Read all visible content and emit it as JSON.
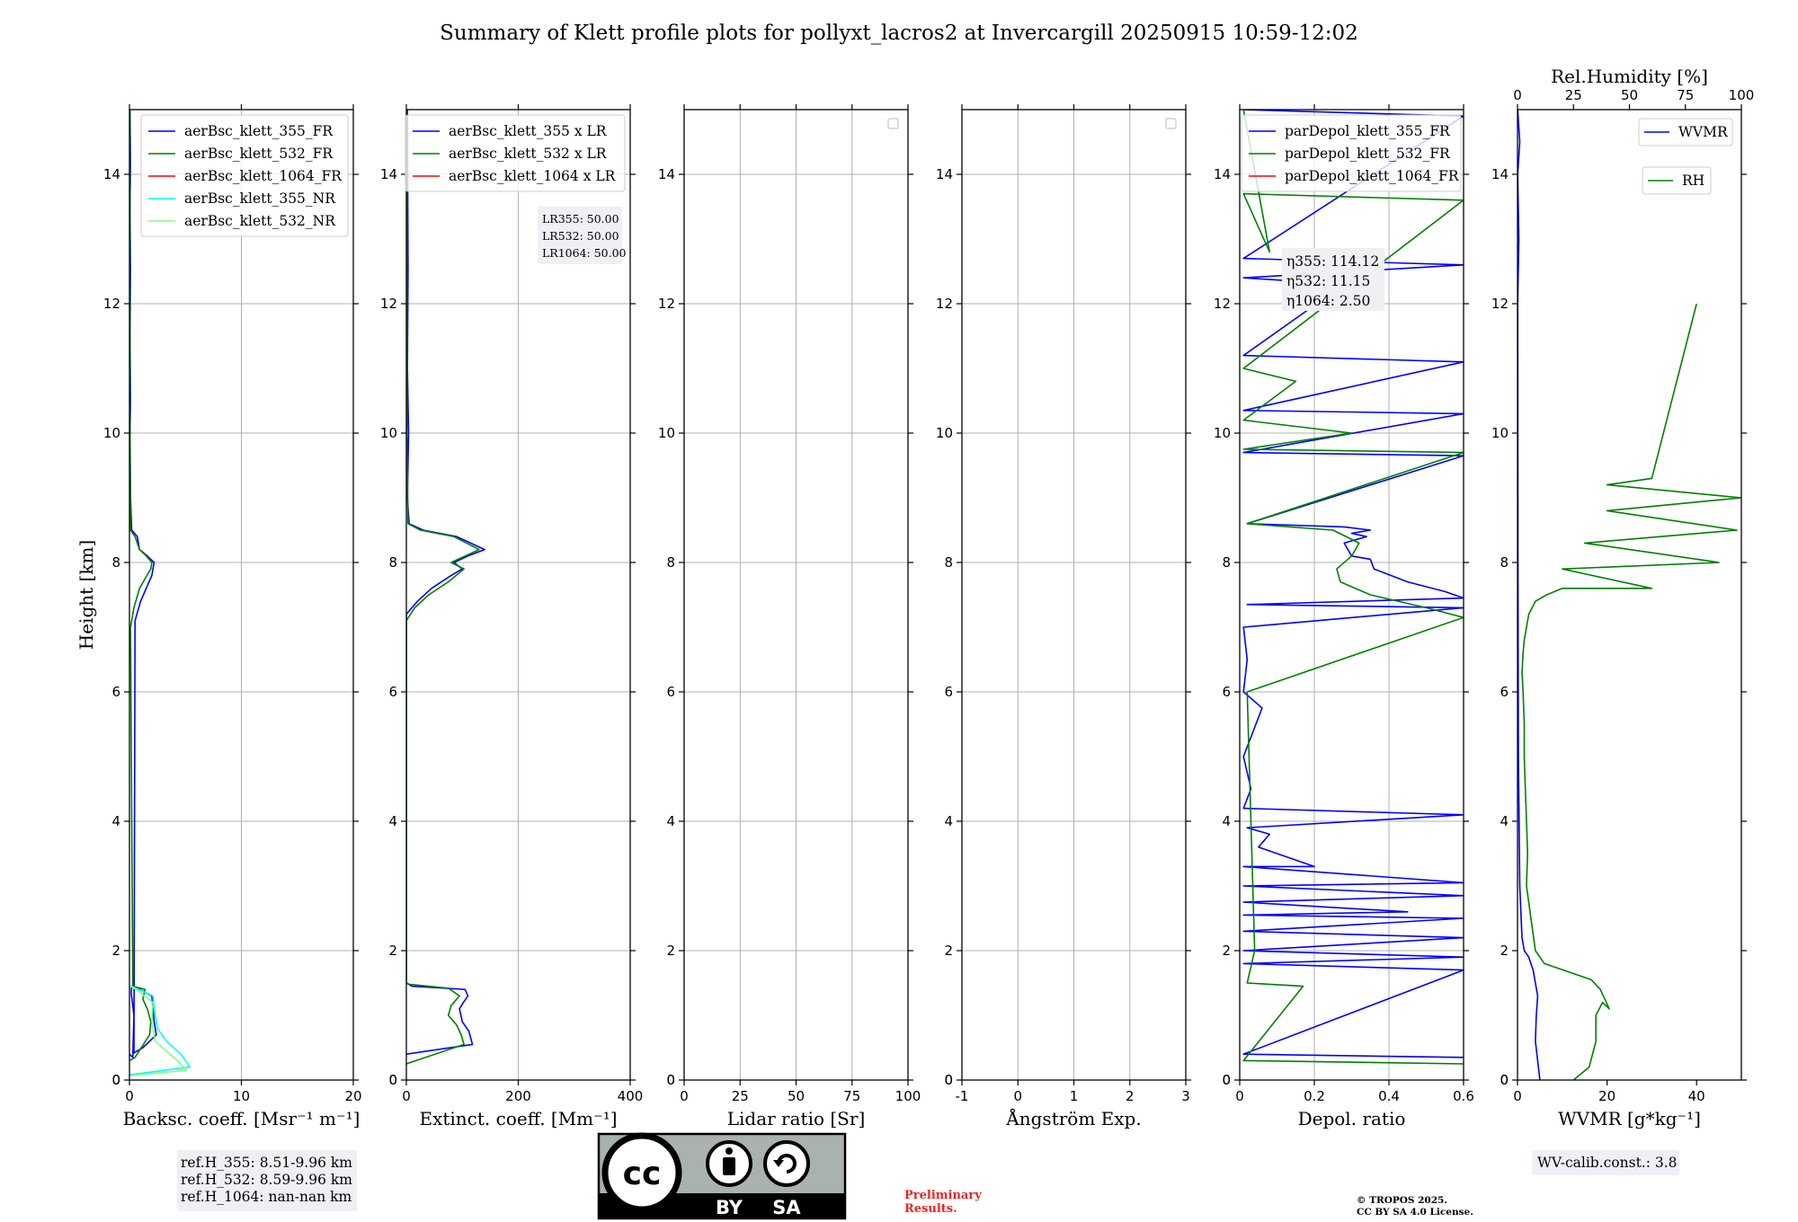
{
  "title": "Summary of Klett profile plots for pollyxt_lacros2 at Invercargill 20250915 10:59-12:02",
  "y_axis_label": "Height [km]",
  "colors": {
    "c355": "#0000ff",
    "c532": "#008000",
    "c1064": "#ff0000",
    "c355nr": "#00ffff",
    "c532nr": "#80ff80"
  },
  "chart_data": [
    {
      "id": "backscatter",
      "type": "line",
      "xlabel": "Backsc. coeff. [Msr⁻¹ m⁻¹]",
      "xlim": [
        0,
        20
      ],
      "xticks": [
        0,
        10,
        20
      ],
      "ylim": [
        0,
        15
      ],
      "yticks": [
        0,
        2,
        4,
        6,
        8,
        10,
        12,
        14
      ],
      "grid": true,
      "legend": "top-right",
      "series": [
        {
          "name": "aerBsc_klett_355_FR",
          "color": "#0000ff",
          "x": [
            0,
            0.3,
            0.4,
            0.15,
            0.2,
            0.9,
            2.0,
            2.2,
            2.4,
            1.2,
            0.4,
            0.5,
            1.0,
            2.0,
            2.2,
            1.6,
            0.9,
            0.7,
            0.2,
            0.1,
            0.05,
            0.1,
            0.05,
            0.1,
            0.05,
            0.1,
            0.05
          ],
          "y": [
            0.4,
            0.35,
            1.0,
            1.35,
            1.45,
            1.4,
            1.3,
            0.9,
            0.7,
            0.5,
            0.42,
            7.1,
            7.4,
            7.8,
            8.0,
            8.1,
            8.2,
            8.4,
            8.5,
            9.0,
            10.0,
            10.5,
            11.5,
            12.5,
            13.5,
            14.2,
            15.0
          ]
        },
        {
          "name": "aerBsc_klett_532_FR",
          "color": "#008000",
          "x": [
            0,
            0.5,
            1.8,
            1.9,
            1.6,
            1.2,
            1.4,
            0.3,
            0.1,
            0.4,
            0.9,
            1.9,
            2.0,
            1.5,
            0.9,
            0.5,
            0.1,
            0.05,
            0.05,
            0.05
          ],
          "y": [
            0.3,
            0.35,
            0.7,
            0.9,
            1.1,
            1.25,
            1.4,
            1.45,
            7.0,
            7.3,
            7.6,
            7.9,
            8.0,
            8.1,
            8.2,
            8.4,
            8.5,
            10.0,
            12.0,
            15.0
          ]
        },
        {
          "name": "aerBsc_klett_1064_FR",
          "color": "#ff0000",
          "x": [],
          "y": []
        },
        {
          "name": "aerBsc_klett_355_NR",
          "color": "#00ffff",
          "x": [
            0,
            5.4,
            4.6,
            3.3,
            2.5,
            2.3,
            2.1,
            0.8,
            0.2
          ],
          "y": [
            0.08,
            0.2,
            0.4,
            0.6,
            0.8,
            1.0,
            1.3,
            1.4,
            1.45
          ]
        },
        {
          "name": "aerBsc_klett_532_NR",
          "color": "#80ff80",
          "x": [
            0,
            5.1,
            4.3,
            2.3,
            2.0,
            2.1,
            0.6,
            0.1
          ],
          "y": [
            0.07,
            0.15,
            0.3,
            0.6,
            0.9,
            1.2,
            1.4,
            1.45
          ]
        }
      ],
      "annotation_lines": [
        "ref.H_355: 8.51-9.96 km",
        "ref.H_532: 8.59-9.96 km",
        "ref.H_1064: nan-nan km"
      ]
    },
    {
      "id": "extinction",
      "type": "line",
      "xlabel": "Extinct. coeff. [Mm⁻¹]",
      "xlim": [
        0,
        400
      ],
      "xticks": [
        0,
        200,
        400
      ],
      "ylim": [
        0,
        15
      ],
      "yticks": [
        0,
        2,
        4,
        6,
        8,
        10,
        12,
        14
      ],
      "grid": true,
      "legend": "top-right",
      "series": [
        {
          "name": "aerBsc_klett_355 x LR",
          "color": "#0000ff",
          "x": [
            0,
            118,
            112,
            100,
            95,
            102,
            110,
            105,
            10,
            0,
            0,
            20,
            45,
            80,
            100,
            85,
            110,
            140,
            90,
            30,
            5,
            2,
            4,
            2,
            3,
            2
          ],
          "y": [
            0.4,
            0.55,
            0.75,
            0.9,
            1.1,
            1.2,
            1.3,
            1.4,
            1.45,
            1.5,
            7.2,
            7.4,
            7.6,
            7.8,
            7.9,
            8.0,
            8.1,
            8.2,
            8.4,
            8.5,
            8.6,
            9.0,
            10.0,
            11.0,
            12.5,
            15.0
          ]
        },
        {
          "name": "aerBsc_klett_532 x LR",
          "color": "#008000",
          "x": [
            0,
            103,
            98,
            90,
            75,
            80,
            95,
            75,
            5,
            0,
            0,
            15,
            40,
            75,
            103,
            80,
            105,
            130,
            85,
            25,
            3,
            1,
            1
          ],
          "y": [
            0.25,
            0.55,
            0.7,
            0.85,
            1.0,
            1.15,
            1.3,
            1.42,
            1.48,
            1.5,
            7.1,
            7.3,
            7.5,
            7.7,
            7.9,
            8.0,
            8.1,
            8.2,
            8.4,
            8.5,
            8.6,
            10.0,
            15.0
          ]
        },
        {
          "name": "aerBsc_klett_1064 x LR",
          "color": "#ff0000",
          "x": [],
          "y": []
        }
      ],
      "annotation_lines": [
        "LR355: 50.00",
        "LR532: 50.00",
        "LR1064: 50.00"
      ]
    },
    {
      "id": "lidar_ratio",
      "type": "line",
      "xlabel": "Lidar ratio [Sr]",
      "xlim": [
        0,
        100
      ],
      "xticks": [
        0,
        25,
        50,
        75,
        100
      ],
      "ylim": [
        0,
        15
      ],
      "yticks": [
        0,
        2,
        4,
        6,
        8,
        10,
        12,
        14
      ],
      "grid": true,
      "legend": "top-right",
      "series": []
    },
    {
      "id": "angstrom",
      "type": "line",
      "xlabel": "Ångström Exp.",
      "xlim": [
        -1,
        3
      ],
      "xticks": [
        -1,
        0,
        1,
        2,
        3
      ],
      "ylim": [
        0,
        15
      ],
      "yticks": [
        0,
        2,
        4,
        6,
        8,
        10,
        12,
        14
      ],
      "grid": true,
      "legend": "top-right",
      "series": []
    },
    {
      "id": "depol",
      "type": "line",
      "xlabel": "Depol. ratio",
      "xlim": [
        0,
        0.6
      ],
      "xticks": [
        0,
        0.2,
        0.4,
        0.6
      ],
      "ylim": [
        0,
        15
      ],
      "yticks": [
        0,
        2,
        4,
        6,
        8,
        10,
        12,
        14
      ],
      "grid": true,
      "legend": "top-left",
      "series": [
        {
          "name": "parDepol_klett_355_FR",
          "color": "#0000ff",
          "x": [
            0.6,
            0.01,
            0.6,
            0.01,
            0.6,
            0.01,
            0.6,
            0.01,
            0.6,
            0.01,
            0.45,
            0.01,
            0.6,
            0.01,
            0.6,
            0.01,
            0.2,
            0.05,
            0.08,
            0.02,
            0.6,
            0.01,
            0.03,
            0.01,
            0.06,
            0.01,
            0.02,
            0.01,
            0.6,
            0.02,
            0.6,
            0.55,
            0.45,
            0.36,
            0.35,
            0.3,
            0.28,
            0.34,
            0.3,
            0.35,
            0.28,
            0.02,
            0.6,
            0.01,
            0.6,
            0.01,
            0.6,
            0.01,
            0.28,
            0.01,
            0.6,
            0.01,
            0.6,
            0.01
          ],
          "y": [
            0.35,
            0.4,
            1.7,
            1.8,
            1.9,
            2.0,
            2.2,
            2.3,
            2.5,
            2.55,
            2.6,
            2.75,
            2.85,
            3.0,
            3.05,
            3.3,
            3.3,
            3.6,
            3.8,
            3.9,
            4.1,
            4.2,
            4.5,
            5.0,
            5.75,
            6.0,
            6.5,
            7.0,
            7.3,
            7.35,
            7.45,
            7.55,
            7.7,
            7.9,
            8.05,
            8.1,
            8.3,
            8.4,
            8.45,
            8.5,
            8.55,
            8.6,
            9.65,
            9.7,
            10.3,
            10.35,
            11.1,
            11.2,
            12.3,
            12.4,
            12.6,
            12.7,
            14.9,
            15.0
          ]
        },
        {
          "name": "parDepol_klett_532_FR",
          "color": "#008000",
          "x": [
            0.6,
            0.01,
            0.17,
            0.02,
            0.04,
            0.02,
            0.6,
            0.5,
            0.35,
            0.27,
            0.26,
            0.3,
            0.32,
            0.25,
            0.02,
            0.6,
            0.01,
            0.3,
            0.01,
            0.15,
            0.01,
            0.6,
            0.01,
            0.08,
            0.01
          ],
          "y": [
            0.25,
            0.3,
            1.45,
            1.5,
            2.0,
            6.0,
            7.15,
            7.3,
            7.5,
            7.7,
            7.9,
            8.1,
            8.3,
            8.5,
            8.6,
            9.7,
            9.75,
            10.0,
            10.2,
            10.8,
            11.0,
            13.6,
            13.7,
            12.8,
            15.0
          ]
        },
        {
          "name": "parDepol_klett_1064_FR",
          "color": "#ff0000",
          "x": [],
          "y": []
        }
      ],
      "annotation_lines": [
        "η355: 114.12",
        "η532: 11.15",
        "η1064: 2.50"
      ]
    },
    {
      "id": "wv",
      "type": "line",
      "xlabel": "WVMR [g*kg⁻¹]",
      "xlim": [
        0,
        50
      ],
      "xticks": [
        0,
        20,
        40
      ],
      "ylim": [
        0,
        15
      ],
      "yticks": [
        0,
        2,
        4,
        6,
        8,
        10,
        12,
        14
      ],
      "top_xlabel": "Rel.Humidity [%]",
      "top_xlim": [
        0,
        100
      ],
      "top_xticks": [
        0,
        25,
        50,
        75,
        100
      ],
      "grid": false,
      "legend": "top-right",
      "series": [
        {
          "name": "WVMR",
          "color": "#0000ff",
          "x": [
            5,
            4.5,
            4,
            4.2,
            4.5,
            4,
            3.5,
            3,
            2.5,
            1.5,
            1,
            0.5,
            0.2,
            0.1,
            0.05,
            0.3,
            0.05,
            0.5,
            0.05
          ],
          "y": [
            0,
            0.3,
            0.6,
            1.0,
            1.3,
            1.5,
            1.7,
            1.8,
            1.9,
            2.0,
            2.2,
            3.0,
            5.0,
            8.0,
            12.0,
            13.0,
            14.0,
            14.5,
            15.0
          ]
        },
        {
          "name": "RH",
          "color": "#008000",
          "x": [
            25,
            32,
            35,
            35,
            38,
            41,
            37,
            33,
            12,
            8,
            6,
            4,
            4.5,
            4,
            3.5,
            3,
            3,
            2.5,
            2,
            2.5,
            3,
            4,
            5,
            8,
            13,
            20,
            60,
            20,
            90,
            30,
            98,
            40,
            100,
            40,
            60,
            80
          ],
          "y": [
            0.0,
            0.2,
            0.6,
            1.0,
            1.2,
            1.1,
            1.4,
            1.55,
            1.8,
            2.0,
            2.5,
            3.0,
            3.5,
            4.0,
            4.5,
            5.0,
            5.5,
            6.0,
            6.3,
            6.6,
            6.8,
            7.0,
            7.2,
            7.4,
            7.5,
            7.6,
            7.6,
            7.9,
            8.0,
            8.3,
            8.5,
            8.8,
            9.0,
            9.2,
            9.3,
            12.0
          ]
        }
      ],
      "annotation_lines": [
        "WV-calib.const.: 3.8"
      ]
    }
  ],
  "license_badge": {
    "left": "BY",
    "right": "SA"
  },
  "prelim_lines": [
    "Preliminary",
    "Results."
  ],
  "copyright_lines": [
    "© TROPOS 2025.",
    "CC BY SA 4.0 License."
  ]
}
